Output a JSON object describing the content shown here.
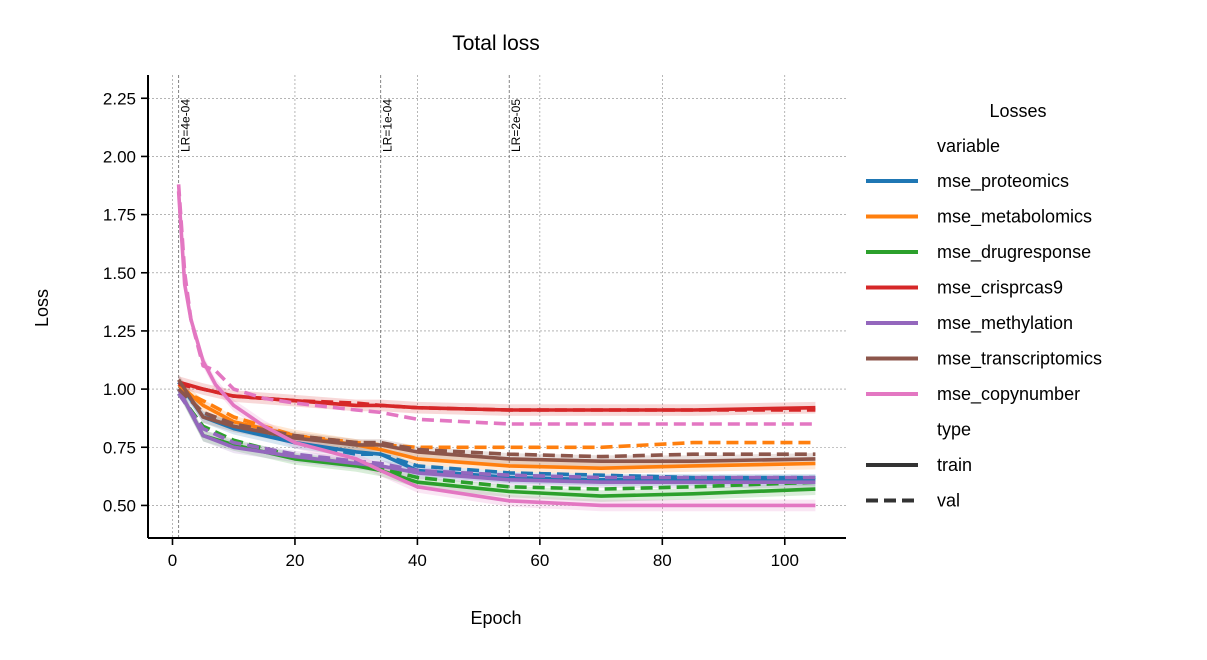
{
  "chart_data": {
    "type": "line",
    "title": "Total loss",
    "xlabel": "Epoch",
    "ylabel": "Loss",
    "xlim": [
      -4,
      110
    ],
    "ylim": [
      0.36,
      2.35
    ],
    "xticks": [
      0,
      20,
      40,
      60,
      80,
      100
    ],
    "yticks": [
      0.5,
      0.75,
      1.0,
      1.25,
      1.5,
      1.75,
      2.0,
      2.25
    ],
    "xtick_labels": [
      "0",
      "20",
      "40",
      "60",
      "80",
      "100"
    ],
    "ytick_labels": [
      "0.50",
      "0.75",
      "1.00",
      "1.25",
      "1.50",
      "1.75",
      "2.00",
      "2.25"
    ],
    "grid": true,
    "lr_markers": [
      {
        "epoch": 1,
        "label": "LR=4e-04"
      },
      {
        "epoch": 34,
        "label": "LR=1e-04"
      },
      {
        "epoch": 55,
        "label": "LR=2e-05"
      }
    ],
    "legend": {
      "title": "Losses",
      "placement": "right, outside",
      "hue_title": "variable",
      "style_title": "type",
      "style_entries": [
        {
          "name": "train",
          "dash": "solid"
        },
        {
          "name": "val",
          "dash": "dashed"
        }
      ]
    },
    "series": [
      {
        "name": "mse_proteomics",
        "color": "#1f77b4",
        "train": {
          "x": [
            1,
            5,
            10,
            20,
            30,
            34,
            40,
            55,
            70,
            85,
            105
          ],
          "y": [
            1.03,
            0.88,
            0.83,
            0.77,
            0.73,
            0.72,
            0.65,
            0.62,
            0.61,
            0.61,
            0.61
          ]
        },
        "val": {
          "x": [
            1,
            5,
            10,
            20,
            30,
            34,
            40,
            55,
            70,
            85,
            105
          ],
          "y": [
            1.0,
            0.9,
            0.84,
            0.77,
            0.72,
            0.72,
            0.67,
            0.64,
            0.63,
            0.62,
            0.62
          ]
        }
      },
      {
        "name": "mse_metabolomics",
        "color": "#ff7f0e",
        "train": {
          "x": [
            1,
            5,
            10,
            20,
            30,
            34,
            40,
            55,
            70,
            85,
            105
          ],
          "y": [
            1.02,
            0.93,
            0.86,
            0.8,
            0.76,
            0.74,
            0.7,
            0.67,
            0.66,
            0.67,
            0.68
          ]
        },
        "val": {
          "x": [
            1,
            5,
            10,
            20,
            30,
            34,
            40,
            55,
            70,
            85,
            105
          ],
          "y": [
            1.0,
            0.95,
            0.88,
            0.8,
            0.77,
            0.76,
            0.75,
            0.75,
            0.75,
            0.77,
            0.77
          ]
        }
      },
      {
        "name": "mse_drugresponse",
        "color": "#2ca02c",
        "train": {
          "x": [
            1,
            5,
            10,
            20,
            30,
            34,
            40,
            55,
            70,
            85,
            105
          ],
          "y": [
            1.0,
            0.8,
            0.76,
            0.7,
            0.67,
            0.65,
            0.6,
            0.56,
            0.54,
            0.55,
            0.57
          ]
        },
        "val": {
          "x": [
            1,
            5,
            10,
            20,
            30,
            34,
            40,
            55,
            70,
            85,
            105
          ],
          "y": [
            0.98,
            0.84,
            0.78,
            0.71,
            0.68,
            0.66,
            0.62,
            0.58,
            0.57,
            0.58,
            0.6
          ]
        }
      },
      {
        "name": "mse_crisprcas9",
        "color": "#d62728",
        "train": {
          "x": [
            1,
            5,
            10,
            20,
            30,
            34,
            40,
            55,
            70,
            85,
            105
          ],
          "y": [
            1.03,
            1.0,
            0.97,
            0.95,
            0.93,
            0.93,
            0.92,
            0.91,
            0.91,
            0.91,
            0.92
          ]
        },
        "val": {
          "x": [
            1,
            5,
            10,
            20,
            30,
            34,
            40,
            55,
            70,
            85,
            105
          ],
          "y": [
            1.02,
            1.0,
            0.97,
            0.95,
            0.94,
            0.93,
            0.92,
            0.91,
            0.91,
            0.91,
            0.91
          ]
        }
      },
      {
        "name": "mse_methylation",
        "color": "#9467bd",
        "train": {
          "x": [
            1,
            5,
            10,
            20,
            30,
            34,
            40,
            55,
            70,
            85,
            105
          ],
          "y": [
            1.0,
            0.8,
            0.75,
            0.71,
            0.68,
            0.67,
            0.64,
            0.61,
            0.6,
            0.6,
            0.6
          ]
        },
        "val": {
          "x": [
            1,
            5,
            10,
            20,
            30,
            34,
            40,
            55,
            70,
            85,
            105
          ],
          "y": [
            0.98,
            0.83,
            0.77,
            0.72,
            0.69,
            0.68,
            0.65,
            0.63,
            0.62,
            0.62,
            0.62
          ]
        }
      },
      {
        "name": "mse_transcriptomics",
        "color": "#8c564b",
        "train": {
          "x": [
            1,
            5,
            10,
            20,
            30,
            34,
            40,
            55,
            70,
            85,
            105
          ],
          "y": [
            1.04,
            0.88,
            0.84,
            0.79,
            0.76,
            0.76,
            0.73,
            0.7,
            0.69,
            0.69,
            0.7
          ]
        },
        "val": {
          "x": [
            1,
            5,
            10,
            20,
            30,
            34,
            40,
            55,
            70,
            85,
            105
          ],
          "y": [
            1.0,
            0.9,
            0.85,
            0.8,
            0.77,
            0.77,
            0.74,
            0.72,
            0.71,
            0.72,
            0.72
          ]
        }
      },
      {
        "name": "mse_copynumber",
        "color": "#e377c2",
        "train": {
          "x": [
            1,
            2,
            3,
            5,
            7,
            10,
            15,
            20,
            30,
            34,
            40,
            55,
            70,
            85,
            105
          ],
          "y": [
            1.85,
            1.45,
            1.3,
            1.12,
            1.02,
            0.93,
            0.84,
            0.77,
            0.7,
            0.65,
            0.58,
            0.52,
            0.5,
            0.5,
            0.5
          ]
        },
        "val": {
          "x": [
            1,
            2,
            3,
            5,
            7,
            10,
            15,
            20,
            30,
            34,
            40,
            55,
            70,
            85,
            105
          ],
          "y": [
            1.88,
            1.5,
            1.3,
            1.1,
            1.08,
            1.0,
            0.96,
            0.94,
            0.91,
            0.9,
            0.87,
            0.85,
            0.85,
            0.85,
            0.85
          ]
        }
      }
    ]
  }
}
